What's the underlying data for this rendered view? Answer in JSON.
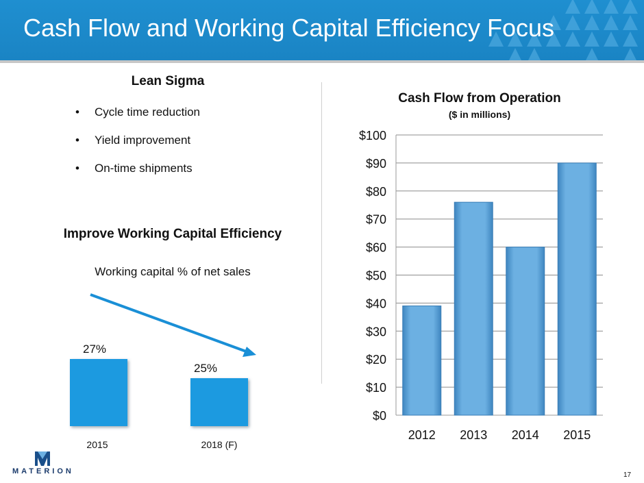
{
  "slide": {
    "title": "Cash Flow and Working Capital Efficiency Focus",
    "page_number": "17",
    "brand_color": "#1a84c4"
  },
  "logo": {
    "text": "MATERION",
    "icon": "materion-logo-icon"
  },
  "lean_sigma": {
    "title": "Lean Sigma",
    "bullet_glyph": "•",
    "bullets": [
      "Cycle time reduction",
      "Yield improvement",
      "On-time shipments"
    ]
  },
  "working_capital": {
    "title": "Improve Working Capital Efficiency",
    "subtitle": "Working capital % of net sales"
  },
  "chart_data": [
    {
      "type": "bar",
      "title": "Cash Flow from Operation",
      "subtitle": "($ in millions)",
      "categories": [
        "2012",
        "2013",
        "2014",
        "2015"
      ],
      "values": [
        39,
        76,
        60,
        90
      ],
      "ylim": [
        0,
        100
      ],
      "y_ticks": [
        "$0",
        "$10",
        "$20",
        "$30",
        "$40",
        "$50",
        "$60",
        "$70",
        "$80",
        "$90",
        "$100"
      ],
      "grid": true,
      "bar_color": "#6cb0e2"
    },
    {
      "type": "bar",
      "categories": [
        "2015",
        "2018 (F)"
      ],
      "values": [
        27,
        25
      ],
      "data_labels": [
        "27%",
        "25%"
      ],
      "annotation": "downward-trend-arrow",
      "bar_color": "#1a9ae0"
    }
  ]
}
